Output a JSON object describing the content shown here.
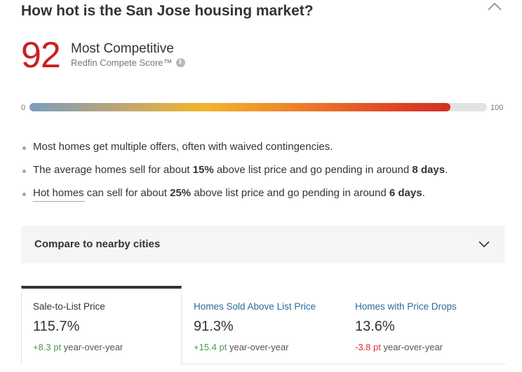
{
  "header": {
    "title": "How hot is the San Jose housing market?"
  },
  "score": {
    "value": "92",
    "value_fraction": 0.92,
    "label": "Most Competitive",
    "sublabel": "Redfin Compete Score™",
    "info_glyph": "i",
    "scale_min": "0",
    "scale_max": "100"
  },
  "colors": {
    "score_red": "#c82021",
    "link_blue": "#2c6b9a",
    "positive_green": "#4b9a4a",
    "negative_red": "#d9312c"
  },
  "bullets": [
    {
      "text": "Most homes get multiple offers, often with waived contingencies."
    },
    {
      "t1": "The average homes sell for about ",
      "b1": "15%",
      "t2": " above list price and go pending in around ",
      "b2": "8 days",
      "t3": "."
    },
    {
      "link": "Hot homes",
      "t1": " can sell for about ",
      "b1": "25%",
      "t2": " above list price and go pending in around ",
      "b2": "6 days",
      "t3": "."
    }
  ],
  "compare": {
    "label": "Compare to nearby cities",
    "icon": "chevron-down-icon"
  },
  "tabs": [
    {
      "label": "Sale-to-List Price",
      "value": "115.7%",
      "change": "+8.3 pt",
      "change_suffix": " year-over-year",
      "active": true
    },
    {
      "label": "Homes Sold Above List Price",
      "value": "91.3%",
      "change": "+15.4 pt",
      "change_suffix": " year-over-year",
      "active": false
    },
    {
      "label": "Homes with Price Drops",
      "value": "13.6%",
      "change": "-3.8 pt",
      "change_suffix": " year-over-year",
      "active": false
    }
  ]
}
